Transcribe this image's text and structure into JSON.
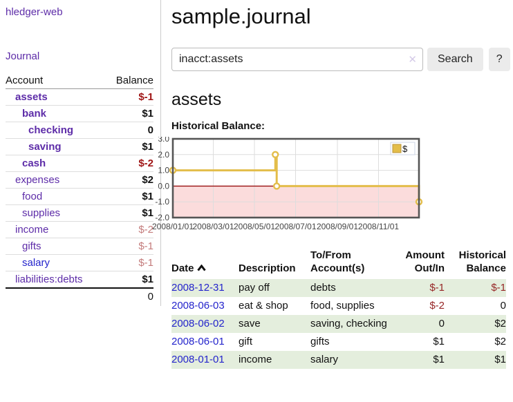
{
  "app": {
    "brand": "hledger-web",
    "nav_journal": "Journal"
  },
  "page": {
    "title": "sample.journal",
    "account_heading": "assets",
    "chart_label": "Historical Balance:"
  },
  "search": {
    "value": "inacct:assets",
    "clear_icon": "✕",
    "button_label": "Search",
    "help_label": "?"
  },
  "sidebar_accounts": {
    "headers": {
      "account": "Account",
      "balance": "Balance"
    },
    "rows": [
      {
        "name": "assets",
        "balance": "$-1"
      },
      {
        "name": "bank",
        "balance": "$1"
      },
      {
        "name": "checking",
        "balance": "0"
      },
      {
        "name": "saving",
        "balance": "$1"
      },
      {
        "name": "cash",
        "balance": "$-2"
      },
      {
        "name": "expenses",
        "balance": "$2"
      },
      {
        "name": "food",
        "balance": "$1"
      },
      {
        "name": "supplies",
        "balance": "$1"
      },
      {
        "name": "income",
        "balance": "$-2"
      },
      {
        "name": "gifts",
        "balance": "$-1"
      },
      {
        "name": "salary",
        "balance": "$-1"
      },
      {
        "name": "liabilities:debts",
        "balance": "$1"
      }
    ],
    "total": "0"
  },
  "chart_data": {
    "type": "line",
    "title": "Historical Balance",
    "series": [
      {
        "name": "$",
        "step": true,
        "points": [
          [
            "2008-01-01",
            1
          ],
          [
            "2008-06-01",
            2
          ],
          [
            "2008-06-03",
            0
          ],
          [
            "2008-12-31",
            -1
          ]
        ]
      }
    ],
    "x_range": [
      "2008-01-01",
      "2008-12-31"
    ],
    "ylim": [
      -2,
      3
    ],
    "y_ticks": [
      "3.0",
      "2.0",
      "1.0",
      "0.0",
      "-1.0",
      "-2.0"
    ],
    "x_ticks": [
      {
        "date": "2008-01-01",
        "label": "2008/01/01"
      },
      {
        "date": "2008-03-01",
        "label": "2008/03/01"
      },
      {
        "date": "2008-05-01",
        "label": "2008/05/01"
      },
      {
        "date": "2008-07-01",
        "label": "2008/07/01"
      },
      {
        "date": "2008-09-01",
        "label": "2008/09/01"
      },
      {
        "date": "2008-11-01",
        "label": "2008/11/01"
      }
    ],
    "legend": {
      "label": "$",
      "position": "top-right"
    },
    "grid": true,
    "colors": {
      "line": "#e3bd4a",
      "marker_fill": "#ffffff",
      "negative_fill": "#fbdcdc",
      "zero_line": "#991111",
      "grid": "#dddddd",
      "border": "#555555"
    }
  },
  "register": {
    "headers": {
      "date": "Date",
      "description": "Description",
      "accounts": "To/From Account(s)",
      "amount": "Amount Out/In",
      "balance": "Historical Balance"
    },
    "rows": [
      {
        "date": "2008-12-31",
        "description": "pay off",
        "accounts": "debts",
        "amount": "$-1",
        "balance": "$-1"
      },
      {
        "date": "2008-06-03",
        "description": "eat & shop",
        "accounts": "food, supplies",
        "amount": "$-2",
        "balance": "0"
      },
      {
        "date": "2008-06-02",
        "description": "save",
        "accounts": "saving, checking",
        "amount": "0",
        "balance": "$2"
      },
      {
        "date": "2008-06-01",
        "description": "gift",
        "accounts": "gifts",
        "amount": "$1",
        "balance": "$2"
      },
      {
        "date": "2008-01-01",
        "description": "income",
        "accounts": "salary",
        "amount": "$1",
        "balance": "$1"
      }
    ]
  }
}
